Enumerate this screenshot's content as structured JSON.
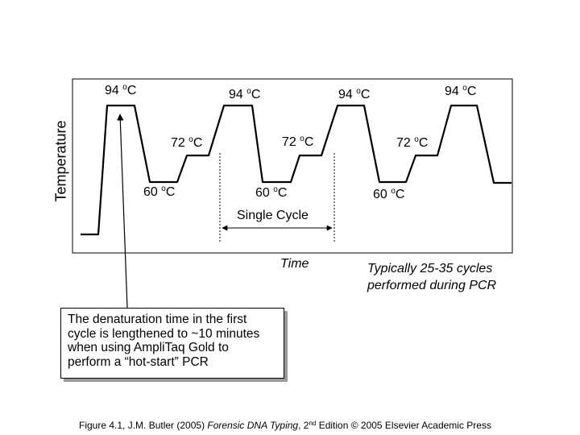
{
  "axis": {
    "y_label": "Temperature",
    "x_label": "Time"
  },
  "temperatures": {
    "denature": "94 ",
    "extend": "72 ",
    "anneal": "60 ",
    "degree_o": "o",
    "unit": "C"
  },
  "cycle_label": "Single Cycle",
  "cycles_note": {
    "line1": "Typically 25-35 cycles",
    "line2": "performed during PCR"
  },
  "callout": {
    "line1": "The denaturation time in the first",
    "line2": "cycle is lengthened to ~10 minutes",
    "line3": "when using AmpliTaq Gold to",
    "line4": "perform a “hot-start” PCR"
  },
  "caption": {
    "part1": "Figure 4.1, J.M. Butler (2005) ",
    "italic": "Forensic DNA Typing",
    "part2": ", 2",
    "sup": "nd",
    "part3": " Edition © 2005 Elsevier Academic Press"
  },
  "colors": {
    "line": "#000000",
    "shadow": "#9a9a9a",
    "background": "#ffffff"
  }
}
